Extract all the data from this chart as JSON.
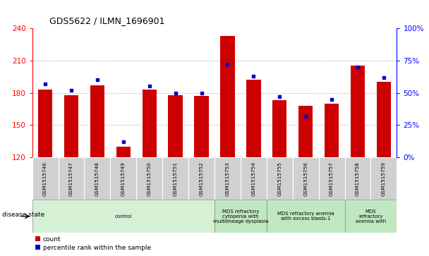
{
  "title": "GDS5622 / ILMN_1696901",
  "samples": [
    "GSM1515746",
    "GSM1515747",
    "GSM1515748",
    "GSM1515749",
    "GSM1515750",
    "GSM1515751",
    "GSM1515752",
    "GSM1515753",
    "GSM1515754",
    "GSM1515755",
    "GSM1515756",
    "GSM1515757",
    "GSM1515758",
    "GSM1515759"
  ],
  "counts": [
    183,
    178,
    187,
    130,
    183,
    178,
    177,
    233,
    192,
    173,
    168,
    170,
    205,
    190
  ],
  "percentiles": [
    57,
    52,
    60,
    12,
    55,
    50,
    50,
    72,
    63,
    47,
    32,
    45,
    70,
    62
  ],
  "ylim_left": [
    120,
    240
  ],
  "ylim_right": [
    0,
    100
  ],
  "yticks_left": [
    120,
    150,
    180,
    210,
    240
  ],
  "yticks_right": [
    0,
    25,
    50,
    75,
    100
  ],
  "disease_groups": [
    {
      "label": "control",
      "start": 0,
      "end": 7,
      "color": "#d6f0d6"
    },
    {
      "label": "MDS refractory\ncytopenia with\nmultilineage dysplasia",
      "start": 7,
      "end": 9,
      "color": "#c0e8c0"
    },
    {
      "label": "MDS refractory anemia\nwith excess blasts-1",
      "start": 9,
      "end": 12,
      "color": "#c0e8c0"
    },
    {
      "label": "MDS\nrefractory\nanemia with",
      "start": 12,
      "end": 14,
      "color": "#c0e8c0"
    }
  ],
  "bar_color": "#cc0000",
  "percentile_color": "#0000cc",
  "grid_color": "#aaaaaa",
  "disease_state_label": "disease state"
}
